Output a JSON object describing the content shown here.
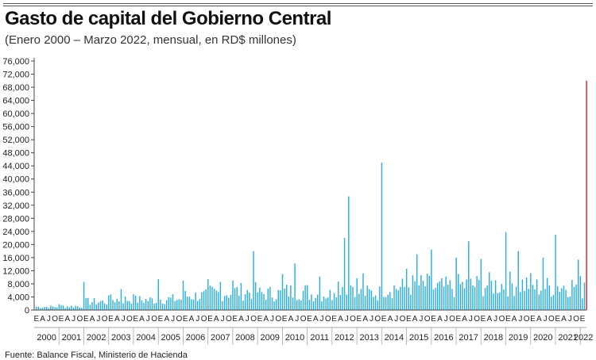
{
  "chart_data": {
    "type": "bar",
    "title": "Gasto de capital del Gobierno Central",
    "subtitle": "(Enero 2000 – Marzo 2022, mensual, en RD$ millones)",
    "source": "Fuente: Balance Fiscal, Ministerio de Hacienda",
    "ylim": [
      0,
      76000
    ],
    "yticks": [
      "0",
      "4,000",
      "8,000",
      "12,000",
      "16,000",
      "20,000",
      "24,000",
      "28,000",
      "32,000",
      "36,000",
      "40,000",
      "44,000",
      "48,000",
      "52,000",
      "56,000",
      "60,000",
      "64,000",
      "68,000",
      "72,000",
      "76,000"
    ],
    "month_labels": [
      "E",
      "A",
      "J",
      "O"
    ],
    "years": [
      "2000",
      "2001",
      "2002",
      "2003",
      "2004",
      "2005",
      "2006",
      "2007",
      "2008",
      "2009",
      "2010",
      "2011",
      "2012",
      "2013",
      "2014",
      "2015",
      "2016",
      "2017",
      "2018",
      "2019",
      "2020",
      "2021",
      "2022"
    ],
    "start": "2000-01",
    "end": "2022-03",
    "grid": false,
    "colors": {
      "bars": "#29aee3",
      "highlight": "#e02020",
      "axis": "#444444"
    },
    "highlight": {
      "month": "2022-03",
      "value": 70000
    },
    "annual_levels": [
      1100,
      1300,
      2800,
      3600,
      3400,
      3700,
      4800,
      5800,
      6300,
      5600,
      6300,
      5300,
      8600,
      5800,
      7600,
      8400,
      7600,
      8300,
      8600,
      8900,
      7800,
      8200,
      6500
    ],
    "peaks": {
      "2000-12": 1800,
      "2001-12": 8600,
      "2002-12": 4500,
      "2003-06": 6400,
      "2003-12": 4800,
      "2004-12": 9400,
      "2005-12": 9000,
      "2006-12": 9400,
      "2007-06": 8600,
      "2007-12": 9000,
      "2008-10": 18000,
      "2009-12": 11000,
      "2010-06": 14200,
      "2011-06": 10200,
      "2012-06": 22000,
      "2012-08": 34700,
      "2013-03": 11200,
      "2013-12": 45000,
      "2014-12": 12600,
      "2015-05": 17000,
      "2015-12": 18500,
      "2016-12": 16000,
      "2017-06": 21000,
      "2017-12": 15600,
      "2018-12": 23800,
      "2019-06": 18000,
      "2020-06": 16000,
      "2020-12": 23000,
      "2021-11": 15400,
      "2022-02": 8400
    }
  }
}
